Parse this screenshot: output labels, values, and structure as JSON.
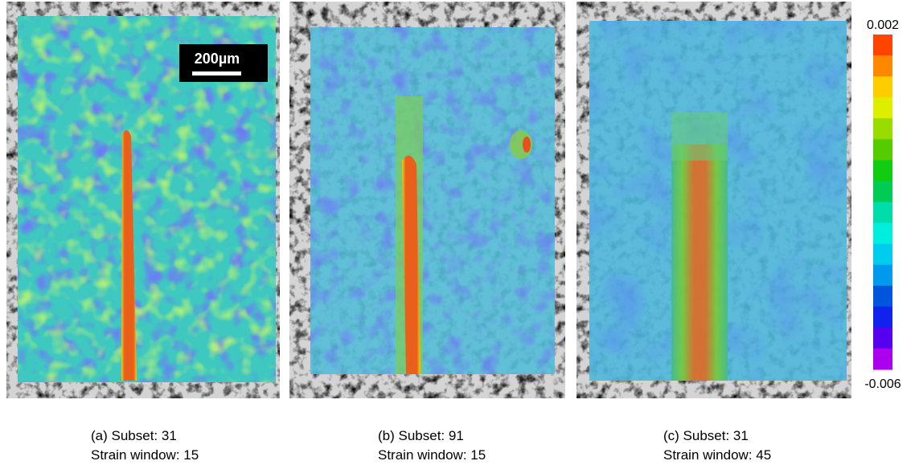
{
  "panels": [
    {
      "caption": [
        "(a) Subset: 31",
        "Strain window: 15"
      ]
    },
    {
      "caption": [
        "(b) Subset: 91",
        "Strain window: 15"
      ]
    },
    {
      "caption": [
        "(c) Subset: 31",
        "Strain window: 45"
      ]
    }
  ],
  "scale_bar": {
    "label": "200µm"
  },
  "colorbar": {
    "max": 0.002,
    "min": -0.006,
    "colors": [
      "#ff4400",
      "#ff8800",
      "#ffcc00",
      "#ddee00",
      "#99dd00",
      "#55cc00",
      "#11cc11",
      "#00cc55",
      "#00ddaa",
      "#00eedd",
      "#00ccee",
      "#0099ee",
      "#0055dd",
      "#1122ee",
      "#5500ee",
      "#aa00ee"
    ]
  }
}
